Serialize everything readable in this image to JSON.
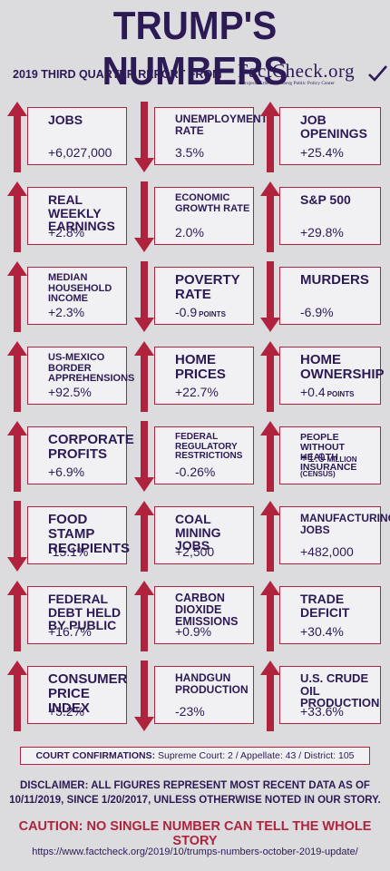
{
  "title": "TRUMP'S NUMBERS",
  "subtitle": "2019 THIRD QUARTER REPORT FROM",
  "logo": {
    "name": "FactCheck.org",
    "tagline": "A Project of the Annenberg Public Policy Center"
  },
  "colors": {
    "accent": "#b0233f",
    "text": "#2c1a55",
    "background": "#dcdcdf",
    "tile": "#f1f1f3"
  },
  "tiles": [
    {
      "label": "JOBS",
      "value": "+6,027,000",
      "unit": "",
      "direction": "up"
    },
    {
      "label": "UNEMPLOYMENT RATE",
      "value": "3.5%",
      "unit": "",
      "direction": "down"
    },
    {
      "label": "JOB OPENINGS",
      "value": "+25.4%",
      "unit": "",
      "direction": "up"
    },
    {
      "label": "REAL WEEKLY EARNINGS",
      "value": "+2.8%",
      "unit": "",
      "direction": "up"
    },
    {
      "label": "ECONOMIC GROWTH RATE",
      "value": "2.0%",
      "unit": "",
      "direction": "down"
    },
    {
      "label": "S&P 500",
      "value": "+29.8%",
      "unit": "",
      "direction": "up"
    },
    {
      "label": "MEDIAN HOUSEHOLD INCOME",
      "value": "+2.3%",
      "unit": "",
      "direction": "up"
    },
    {
      "label": "POVERTY RATE",
      "value": "-0.9",
      "unit": "POINTS",
      "direction": "down"
    },
    {
      "label": "MURDERS",
      "value": "-6.9%",
      "unit": "",
      "direction": "down"
    },
    {
      "label": "US-MEXICO BORDER APPREHENSIONS",
      "value": "+92.5%",
      "unit": "",
      "direction": "up"
    },
    {
      "label": "HOME PRICES",
      "value": "+22.7%",
      "unit": "",
      "direction": "up"
    },
    {
      "label": "HOME OWNERSHIP",
      "value": "+0.4",
      "unit": "POINTS",
      "direction": "up"
    },
    {
      "label": "CORPORATE PROFITS",
      "value": "+6.9%",
      "unit": "",
      "direction": "up"
    },
    {
      "label": "FEDERAL REGULATORY RESTRICTIONS",
      "value": "-0.26%",
      "unit": "",
      "direction": "down"
    },
    {
      "label": "PEOPLE WITHOUT HEALTH INSURANCE",
      "value": "+1.9",
      "unit": "MILLION (CENSUS)",
      "direction": "up"
    },
    {
      "label": "FOOD STAMP RECIPIENTS",
      "value": "-15.1%",
      "unit": "",
      "direction": "down"
    },
    {
      "label": "COAL MINING JOBS",
      "value": "+2,500",
      "unit": "",
      "direction": "up"
    },
    {
      "label": "MANUFACTURING JOBS",
      "value": "+482,000",
      "unit": "",
      "direction": "up"
    },
    {
      "label": "FEDERAL DEBT HELD BY PUBLIC",
      "value": "+16.7%",
      "unit": "",
      "direction": "up"
    },
    {
      "label": "CARBON DIOXIDE EMISSIONS",
      "value": "+0.9%",
      "unit": "",
      "direction": "up"
    },
    {
      "label": "TRADE DEFICIT",
      "value": "+30.4%",
      "unit": "",
      "direction": "up"
    },
    {
      "label": "CONSUMER PRICE INDEX",
      "value": "+5.2%",
      "unit": "",
      "direction": "up"
    },
    {
      "label": "HANDGUN PRODUCTION",
      "value": "-23%",
      "unit": "",
      "direction": "down"
    },
    {
      "label": "U.S. CRUDE OIL PRODUCTION",
      "value": "+33.6%",
      "unit": "",
      "direction": "up"
    }
  ],
  "court": {
    "label": "COURT CONFIRMATIONS:",
    "text": "Supreme Court: 2 / Appellate: 43 / District: 105"
  },
  "disclaimer": "DISCLAIMER:  ALL FIGURES REPRESENT MOST RECENT DATA AS OF 10/11/2019, SINCE 1/20/2017, UNLESS OTHERWISE NOTED IN OUR STORY.",
  "caution": "CAUTION: NO SINGLE NUMBER CAN TELL THE WHOLE STORY",
  "url": "https://www.factcheck.org/2019/10/trumps-numbers-october-2019-update/"
}
